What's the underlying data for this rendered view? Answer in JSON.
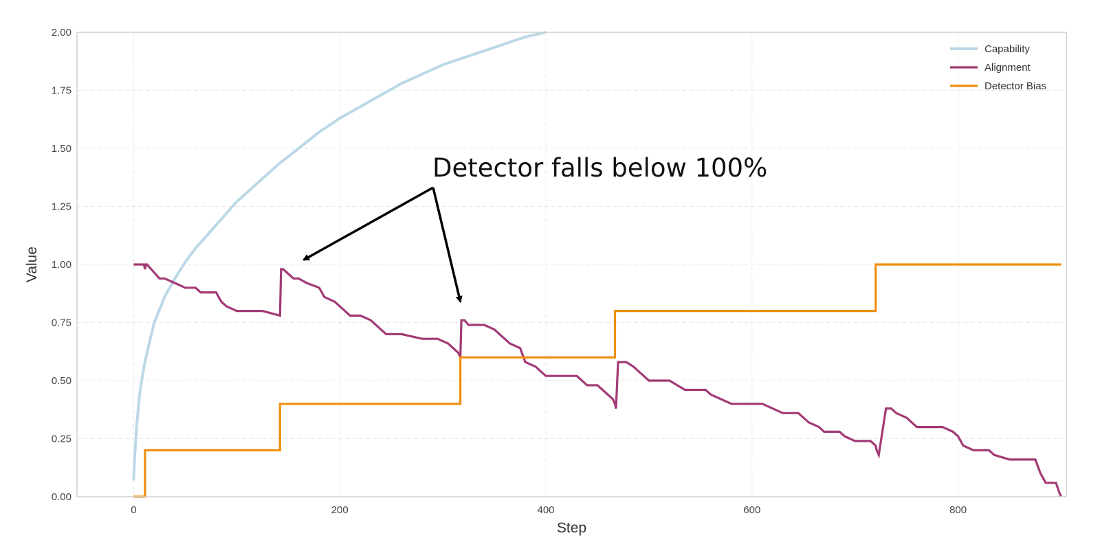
{
  "chart_data": {
    "type": "line",
    "title": "",
    "xlabel": "Step",
    "ylabel": "Value",
    "xlim": [
      -55,
      905
    ],
    "ylim": [
      0,
      2
    ],
    "xticks": [
      0,
      200,
      400,
      600,
      800
    ],
    "yticks": [
      0,
      0.25,
      0.5,
      0.75,
      1.0,
      1.25,
      1.5,
      1.75,
      2.0
    ],
    "xtick_labels": [
      "0",
      "200",
      "400",
      "600",
      "800"
    ],
    "ytick_labels": [
      "0.00",
      "0.25",
      "0.50",
      "0.75",
      "1.00",
      "1.25",
      "1.50",
      "1.75",
      "2.00"
    ],
    "grid": true,
    "legend_position": "top-right",
    "series": [
      {
        "name": "Capability",
        "color": "#bcd8e6",
        "x": [
          0,
          1,
          3,
          6,
          10,
          15,
          20,
          30,
          40,
          50,
          60,
          80,
          100,
          120,
          140,
          160,
          180,
          200,
          220,
          240,
          260,
          280,
          300,
          320,
          340,
          360,
          380,
          400
        ],
        "y": [
          0.07,
          0.17,
          0.31,
          0.45,
          0.56,
          0.66,
          0.75,
          0.86,
          0.94,
          1.01,
          1.07,
          1.17,
          1.27,
          1.35,
          1.43,
          1.5,
          1.57,
          1.63,
          1.68,
          1.73,
          1.78,
          1.82,
          1.86,
          1.89,
          1.92,
          1.95,
          1.98,
          2.0
        ]
      },
      {
        "name": "Alignment",
        "color": "#a23a75",
        "x": [
          0,
          10,
          11,
          12,
          13,
          25,
          30,
          40,
          50,
          60,
          65,
          80,
          85,
          90,
          100,
          110,
          125,
          142,
          143,
          145,
          150,
          155,
          160,
          168,
          180,
          185,
          195,
          200,
          210,
          220,
          230,
          235,
          245,
          260,
          280,
          295,
          305,
          315,
          317,
          318,
          321,
          325,
          340,
          350,
          355,
          360,
          365,
          375,
          380,
          390,
          400,
          415,
          430,
          440,
          450,
          455,
          465,
          467,
          468,
          470,
          478,
          485,
          490,
          500,
          520,
          535,
          545,
          555,
          560,
          570,
          580,
          600,
          610,
          620,
          630,
          645,
          655,
          665,
          670,
          685,
          690,
          700,
          715,
          720,
          721,
          723,
          730,
          735,
          740,
          750,
          760,
          785,
          795,
          800,
          805,
          815,
          830,
          835,
          850,
          875,
          880,
          885,
          890,
          895,
          898,
          900
        ],
        "y": [
          1.0,
          1.0,
          0.98,
          1.0,
          1.0,
          0.94,
          0.94,
          0.92,
          0.9,
          0.9,
          0.88,
          0.88,
          0.84,
          0.82,
          0.8,
          0.8,
          0.8,
          0.78,
          0.98,
          0.98,
          0.96,
          0.94,
          0.94,
          0.92,
          0.9,
          0.86,
          0.84,
          0.82,
          0.78,
          0.78,
          0.76,
          0.74,
          0.7,
          0.7,
          0.68,
          0.68,
          0.66,
          0.62,
          0.6,
          0.76,
          0.76,
          0.74,
          0.74,
          0.72,
          0.7,
          0.68,
          0.66,
          0.64,
          0.58,
          0.56,
          0.52,
          0.52,
          0.52,
          0.48,
          0.48,
          0.46,
          0.42,
          0.4,
          0.38,
          0.58,
          0.58,
          0.56,
          0.54,
          0.5,
          0.5,
          0.46,
          0.46,
          0.46,
          0.44,
          0.42,
          0.4,
          0.4,
          0.4,
          0.38,
          0.36,
          0.36,
          0.32,
          0.3,
          0.28,
          0.28,
          0.26,
          0.24,
          0.24,
          0.22,
          0.2,
          0.18,
          0.38,
          0.38,
          0.36,
          0.34,
          0.3,
          0.3,
          0.28,
          0.26,
          0.22,
          0.2,
          0.2,
          0.18,
          0.16,
          0.16,
          0.1,
          0.06,
          0.06,
          0.06,
          0.02,
          0.0
        ]
      },
      {
        "name": "Detector Bias",
        "color": "#ef8f0f",
        "x": [
          0,
          11,
          11,
          142,
          142,
          317,
          317,
          467,
          467,
          720,
          720,
          900
        ],
        "y": [
          0.0,
          0.0,
          0.2,
          0.2,
          0.4,
          0.4,
          0.6,
          0.6,
          0.8,
          0.8,
          1.0,
          1.0
        ]
      }
    ],
    "annotations": [
      {
        "text": "Detector falls below 100%",
        "arrows_to": [
          [
            165,
            1.02
          ],
          [
            317,
            0.84
          ]
        ]
      }
    ]
  }
}
